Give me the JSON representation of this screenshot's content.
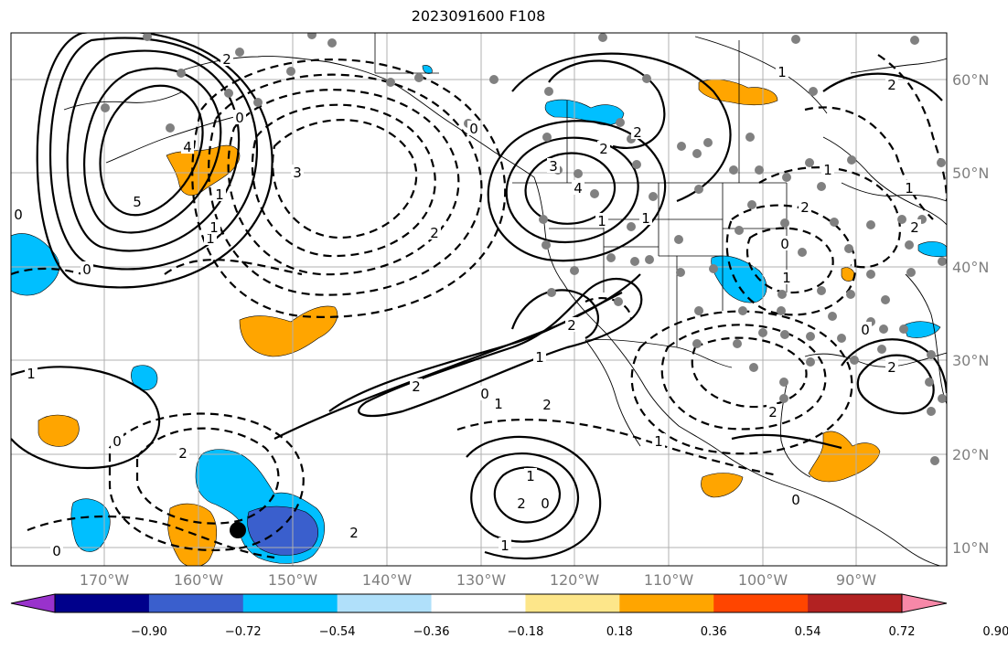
{
  "title": "2023091600 F108",
  "lon_ticks": [
    "170°W",
    "160°W",
    "150°W",
    "140°W",
    "130°W",
    "120°W",
    "110°W",
    "100°W",
    "90°W"
  ],
  "lat_ticks": [
    "60°N",
    "50°N",
    "40°N",
    "30°N",
    "20°N",
    "10°N"
  ],
  "colorbar": {
    "labels": [
      "−0.90",
      "−0.72",
      "−0.54",
      "−0.36",
      "−0.18",
      "0.18",
      "0.36",
      "0.54",
      "0.72",
      "0.90"
    ],
    "colors": [
      "#9932cc",
      "#00008b",
      "#3a5fcd",
      "#00bfff",
      "#b0e0fa",
      "#ffffff",
      "#fde68a",
      "#ffa500",
      "#ff4500",
      "#b22222",
      "#f788a8"
    ]
  },
  "contour_labels": [
    "2",
    "4",
    "5",
    "0",
    "1",
    "3",
    "2",
    "1",
    "3",
    "4",
    "2",
    "0",
    "1",
    "1",
    "2",
    "2",
    "0",
    "1",
    "2",
    "1",
    "0",
    "1",
    "2",
    "0",
    "2",
    "1",
    "2",
    "1",
    "0",
    "0",
    "1",
    "0",
    "2",
    "1",
    "2",
    "1",
    "2",
    "0",
    "1",
    "2",
    "0",
    "2",
    "1",
    "0",
    "2",
    "0",
    "1"
  ]
}
